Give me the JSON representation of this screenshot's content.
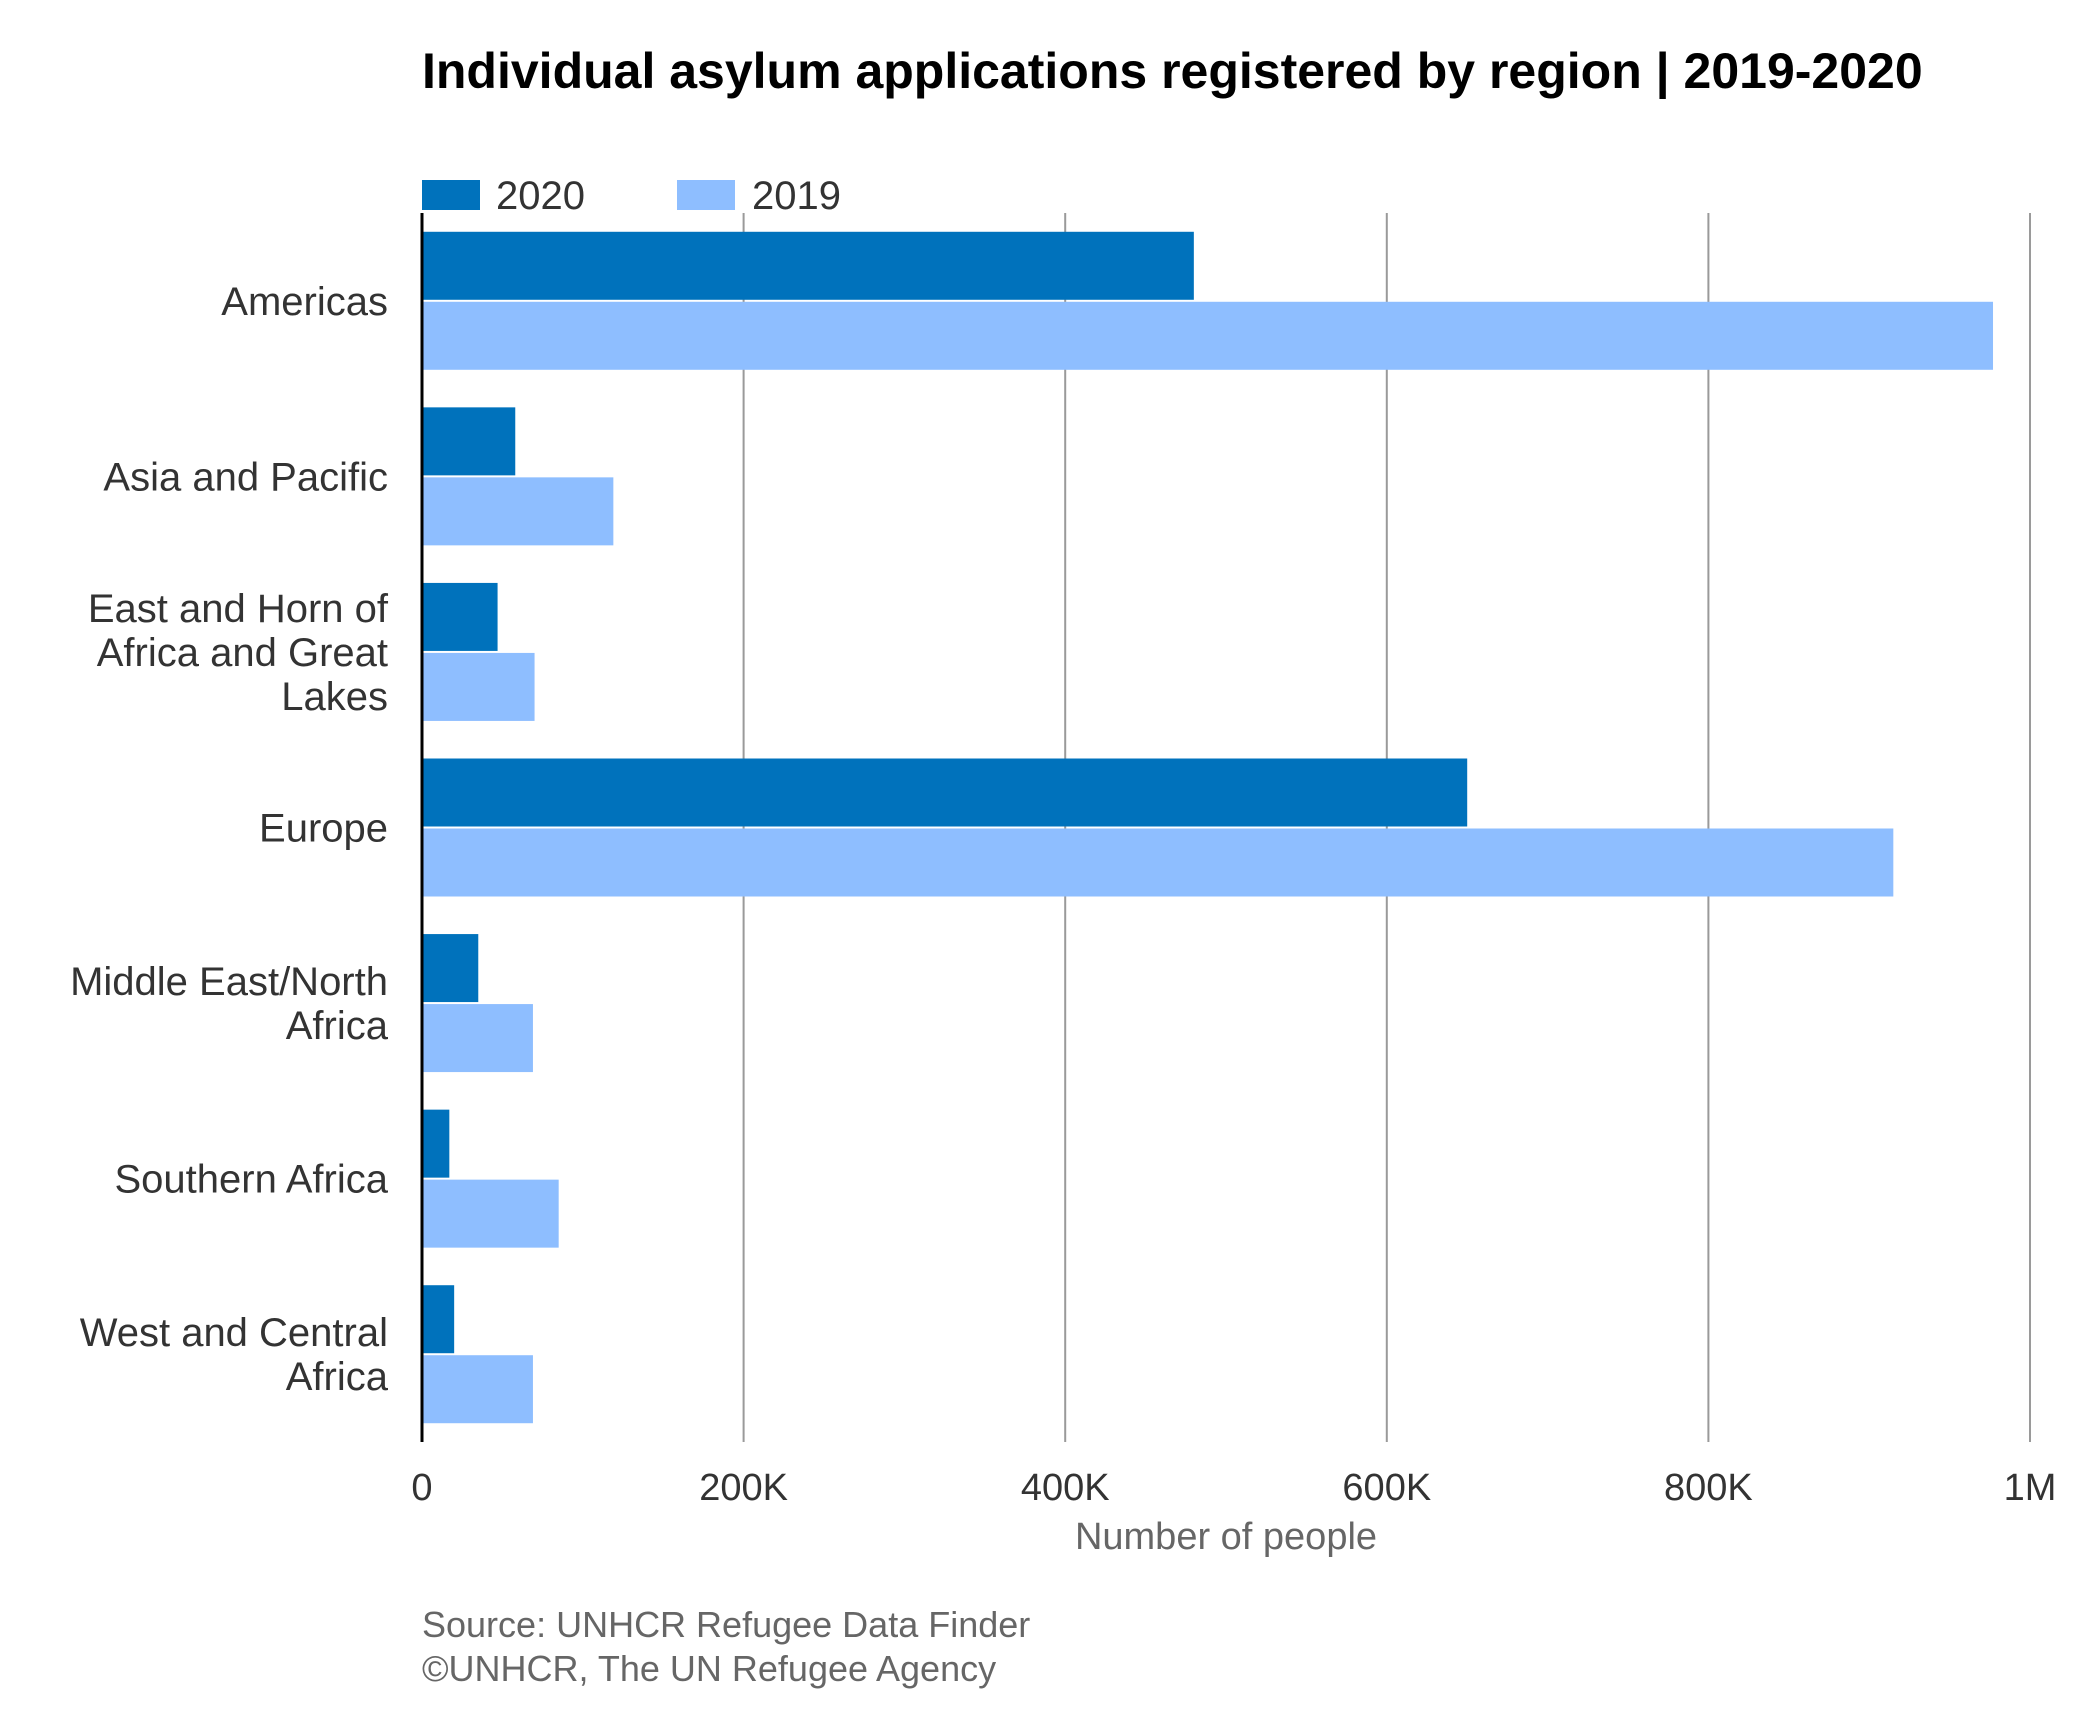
{
  "chart_data": {
    "type": "bar",
    "orientation": "horizontal",
    "title": "Individual asylum applications registered by region | 2019-2020",
    "xlabel": "Number of people",
    "ylabel": "",
    "categories": [
      "Americas",
      "Asia and Pacific",
      "East and Horn of Africa and Great Lakes",
      "Europe",
      "Middle East/North Africa",
      "Southern Africa",
      "West and Central Africa"
    ],
    "category_lines": [
      [
        "Americas"
      ],
      [
        "Asia and Pacific"
      ],
      [
        "East and Horn of",
        "Africa and Great",
        "Lakes"
      ],
      [
        "Europe"
      ],
      [
        "Middle East/North",
        "Africa"
      ],
      [
        "Southern Africa"
      ],
      [
        "West and Central",
        "Africa"
      ]
    ],
    "series": [
      {
        "name": "2020",
        "color": "#0072BC",
        "values": [
          480000,
          58000,
          47000,
          650000,
          35000,
          17000,
          20000
        ]
      },
      {
        "name": "2019",
        "color": "#8EBEFF",
        "values": [
          977000,
          119000,
          70000,
          915000,
          69000,
          85000,
          69000
        ]
      }
    ],
    "xlim": [
      0,
      1000000
    ],
    "xticks": [
      0,
      200000,
      400000,
      600000,
      800000,
      1000000
    ],
    "xtick_labels": [
      "0",
      "200K",
      "400K",
      "600K",
      "800K",
      "1M"
    ],
    "grid": "vertical",
    "legend_position": "top-left"
  },
  "footer": {
    "source": "Source: UNHCR Refugee Data Finder",
    "copyright": "©UNHCR, The UN Refugee Agency"
  }
}
